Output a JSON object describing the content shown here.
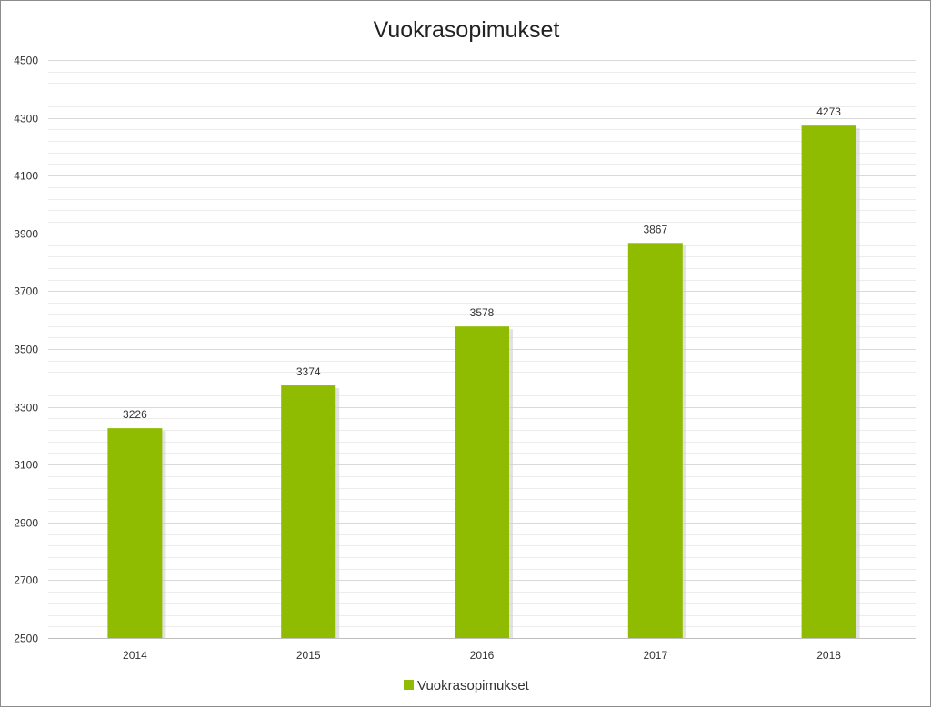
{
  "chart_data": {
    "type": "bar",
    "title": "Vuokrasopimukset",
    "categories": [
      "2014",
      "2015",
      "2016",
      "2017",
      "2018"
    ],
    "series": [
      {
        "name": "Vuokrasopimukset",
        "values": [
          3226,
          3374,
          3578,
          3867,
          4273
        ]
      }
    ],
    "ylim": [
      2500,
      4500
    ],
    "yticks": [
      2500,
      2700,
      2900,
      3100,
      3300,
      3500,
      3700,
      3900,
      4100,
      4300,
      4500
    ],
    "ytick_labels": [
      "2500",
      "2700",
      "2900",
      "3100",
      "3300",
      "3500",
      "3700",
      "3900",
      "4100",
      "4300",
      "4500"
    ],
    "xlabel": "",
    "ylabel": "",
    "grid": true,
    "minor_grid": true,
    "legend_position": "bottom",
    "data_labels": true,
    "colors": {
      "bar": "#8fbc00",
      "grid_major": "#d9d9d9",
      "grid_minor": "#ececec",
      "text": "#333333"
    }
  }
}
